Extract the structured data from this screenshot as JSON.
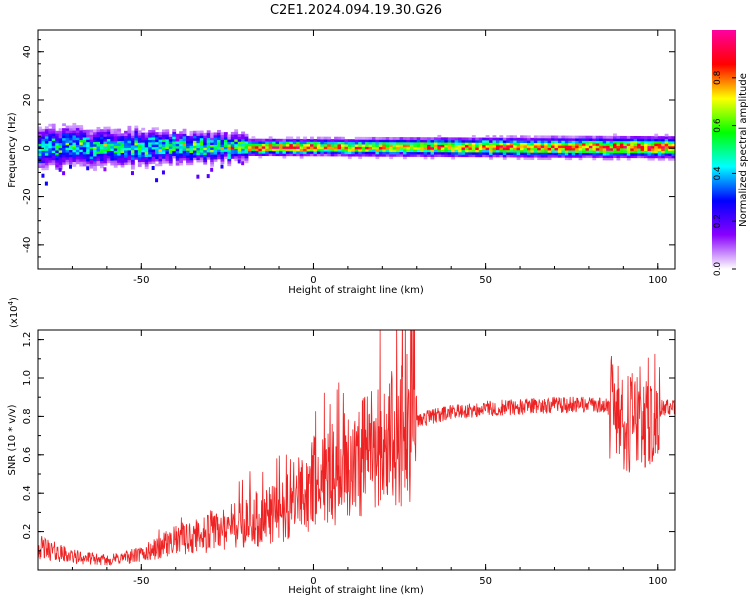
{
  "title": "C2E1.2024.094.19.30.G26",
  "chart_data": [
    {
      "type": "heatmap",
      "xlabel": "Height of straight line (km)",
      "ylabel": "Frequency (Hz)",
      "xlim": [
        -80,
        105
      ],
      "ylim": [
        -50,
        49
      ],
      "xticks": [
        -50,
        0,
        50,
        100
      ],
      "yticks": [
        -40,
        -20,
        0,
        20,
        40
      ],
      "colorbar": {
        "label": "Normalized spectral amplitude",
        "range": [
          0,
          1
        ],
        "ticks": [
          0.0,
          0.2,
          0.4,
          0.6,
          0.8
        ],
        "colors": [
          "#ffffff",
          "#8800ff",
          "#0000ff",
          "#00ffff",
          "#00ff00",
          "#ffff00",
          "#ff0000",
          "#ff00a0"
        ]
      },
      "band": {
        "center_frequency": 0,
        "halfwidth_segments": [
          {
            "x": [
              -80,
              -20
            ],
            "halfwidth": [
              8,
              5
            ]
          },
          {
            "x": [
              -20,
              105
            ],
            "halfwidth": [
              3,
              4
            ]
          }
        ],
        "peak_amplitude": [
          {
            "x": [
              -80,
              -20
            ],
            "amplitude": [
              0.45,
              0.6
            ]
          },
          {
            "x": [
              -20,
              0
            ],
            "amplitude": [
              0.85,
              0.85
            ]
          },
          {
            "x": [
              0,
              85
            ],
            "amplitude": [
              0.75,
              0.85
            ]
          },
          {
            "x": [
              85,
              105
            ],
            "amplitude": [
              0.85,
              0.9
            ]
          }
        ]
      }
    },
    {
      "type": "line",
      "xlabel": "Height of straight line (km)",
      "ylabel": "SNR (10 * v/v)",
      "y_multiplier": "(x10",
      "y_multiplier_exp": "4",
      "y_multiplier_close": ")",
      "xlim": [
        -80,
        105
      ],
      "ylim": [
        0,
        12500
      ],
      "xticks": [
        -50,
        0,
        50,
        100
      ],
      "yticks": [
        2000,
        4000,
        6000,
        8000,
        10000,
        12000
      ],
      "ytick_labels": [
        "0.2",
        "0.4",
        "0.6",
        "0.8",
        "1.0",
        "1.2"
      ],
      "color": "#ee2222",
      "trend": {
        "x": [
          -80,
          -70,
          -60,
          -50,
          -40,
          -30,
          -20,
          -10,
          0,
          10,
          20,
          30,
          40,
          50,
          60,
          70,
          80,
          86,
          90,
          95,
          100,
          105
        ],
        "y": [
          1200,
          700,
          500,
          800,
          1500,
          2000,
          2500,
          3000,
          4500,
          5500,
          6500,
          7800,
          8200,
          8400,
          8500,
          8600,
          8600,
          8500,
          7500,
          8000,
          8500,
          8400
        ]
      }
    }
  ]
}
